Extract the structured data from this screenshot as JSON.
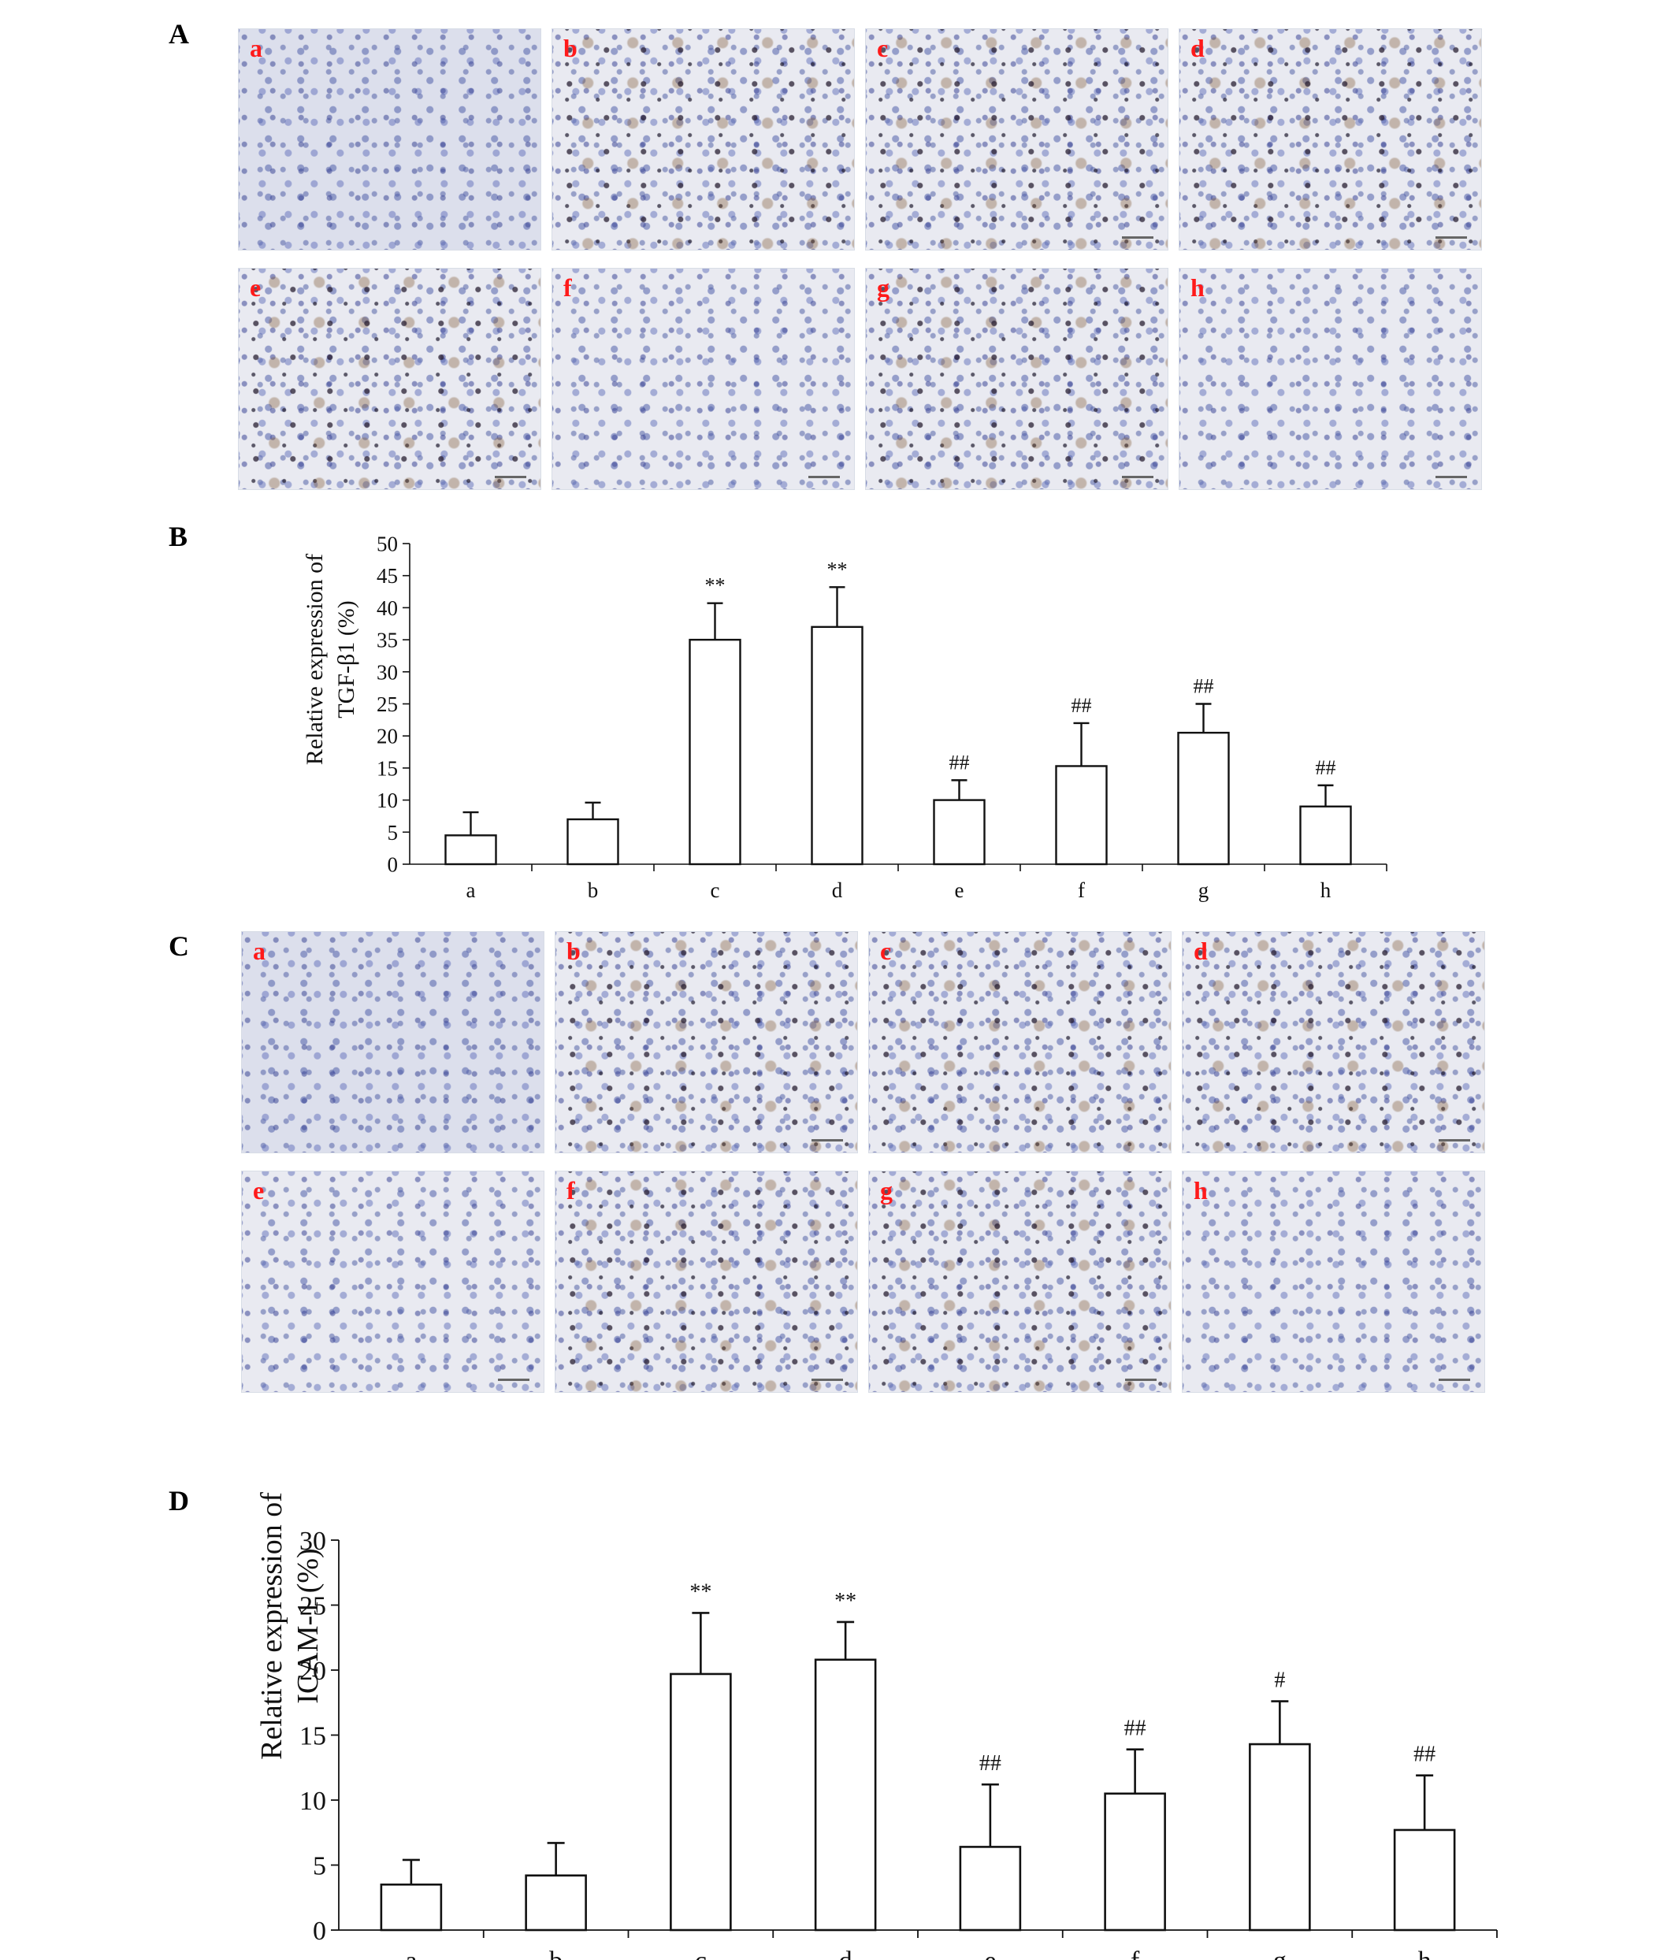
{
  "panels": {
    "A": "A",
    "B": "B",
    "C": "C",
    "D": "D"
  },
  "micrograph_sets": {
    "A": [
      "a",
      "b",
      "c",
      "d",
      "e",
      "f",
      "g",
      "h"
    ],
    "C": [
      "a",
      "b",
      "c",
      "d",
      "e",
      "f",
      "g",
      "h"
    ]
  },
  "colors": {
    "micro_label": "#ff1a1a",
    "bar_fill": "#ffffff",
    "bar_stroke": "#111111"
  },
  "chart_data": [
    {
      "panel": "B",
      "type": "bar",
      "ylabel_line1": "Relative expression of",
      "ylabel_line2": "TGF-β1 (%)",
      "ylim": [
        0,
        50
      ],
      "yticks": [
        0,
        5,
        10,
        15,
        20,
        25,
        30,
        35,
        40,
        45,
        50
      ],
      "categories": [
        "a",
        "b",
        "c",
        "d",
        "e",
        "f",
        "g",
        "h"
      ],
      "values": [
        4.5,
        7,
        35,
        37,
        10,
        15.3,
        20.5,
        9
      ],
      "errors": [
        3.6,
        2.6,
        5.7,
        6.2,
        3.1,
        6.7,
        4.5,
        3.3
      ],
      "annotations": [
        "",
        "",
        "**",
        "**",
        "##",
        "##",
        "##",
        "##"
      ]
    },
    {
      "panel": "D",
      "type": "bar",
      "ylabel_line1": "Relative expression of",
      "ylabel_line2": "ICAM-1 (%)",
      "ylim": [
        0,
        30
      ],
      "yticks": [
        0,
        5,
        10,
        15,
        20,
        25,
        30
      ],
      "categories": [
        "a",
        "b",
        "c",
        "d",
        "e",
        "f",
        "g",
        "h"
      ],
      "values": [
        3.5,
        4.2,
        19.7,
        20.8,
        6.4,
        10.5,
        14.3,
        7.7
      ],
      "errors": [
        1.9,
        2.5,
        4.7,
        2.9,
        4.8,
        3.4,
        3.3,
        4.2
      ],
      "annotations": [
        "",
        "",
        "**",
        "**",
        "##",
        "##",
        "#",
        "##"
      ]
    }
  ]
}
